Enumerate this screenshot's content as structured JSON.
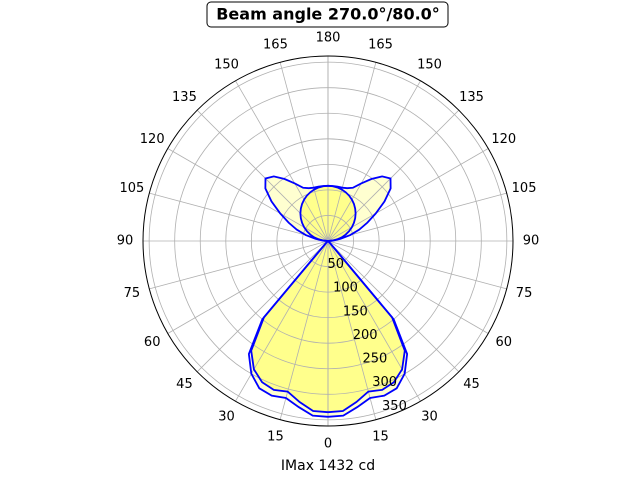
{
  "chart_data": {
    "type": "polar",
    "title": "Beam angle 270.0°/80.0°",
    "xlabel": "IMax 1432 cd",
    "theta": [
      0,
      5,
      10,
      15,
      20,
      25,
      30,
      35,
      40,
      45,
      50,
      55,
      60,
      65,
      70,
      75,
      80,
      85,
      90,
      95,
      100,
      105,
      110,
      115,
      120,
      125,
      130,
      135,
      140,
      145,
      150,
      155,
      160,
      165,
      170,
      175,
      180
    ],
    "series": [
      {
        "color": "#0000ff",
        "fill": "#ffffc8",
        "values": [
          344,
          343,
          330,
          318,
          322,
          318,
          300,
          270,
          200,
          5,
          0,
          0,
          0,
          0,
          0,
          0,
          0,
          0,
          0,
          10,
          25,
          45,
          65,
          85,
          108,
          135,
          160,
          173,
          165,
          148,
          130,
          115,
          110,
          108,
          108,
          108,
          108
        ]
      },
      {
        "color": "#0000ff",
        "fill": "#ffff80",
        "values": [
          335,
          334,
          320,
          305,
          310,
          305,
          290,
          262,
          195,
          4,
          0,
          0,
          0,
          0,
          0,
          0,
          0,
          0,
          0,
          9.4,
          18.8,
          28,
          36.9,
          45.6,
          54,
          61.9,
          69.4,
          76.4,
          82.7,
          88.5,
          93.5,
          97.9,
          101.5,
          104.3,
          106.4,
          107.6,
          108
        ]
      }
    ],
    "rlim": [
      0,
      362
    ],
    "rticks": [
      50,
      100,
      150,
      200,
      250,
      300,
      350
    ],
    "thetaticks": [
      0,
      15,
      30,
      45,
      60,
      75,
      90,
      105,
      120,
      135,
      150,
      165,
      180
    ],
    "grid": true
  }
}
